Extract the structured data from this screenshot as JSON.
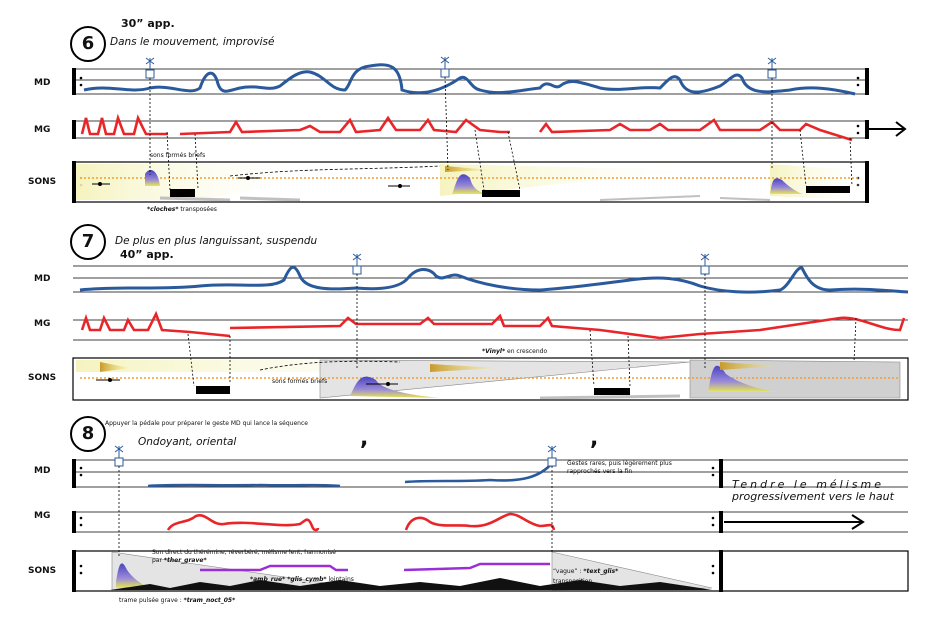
{
  "staff_labels": {
    "md": "MD",
    "mg": "MG",
    "sons": "SONS"
  },
  "sections": [
    {
      "number": "6",
      "tempo": "30” app.",
      "expression": "Dans le mouvement, improvisé",
      "annotations": {
        "sons_formes": "sons formés brïefs",
        "cloches": "*cloches*",
        "cloches_suffix": " transposées"
      }
    },
    {
      "number": "7",
      "tempo": "40” app.",
      "expression": "De plus en plus languissant, suspendu",
      "annotations": {
        "vinyl": "*Vinyl*",
        "vinyl_suffix": " en crescendo",
        "sons_formes": "sons formés brïefs"
      }
    },
    {
      "number": "8",
      "instruction": "Appuyer la pédale pour préparer le geste MD qui lance la séquence",
      "expression": "Ondoyant, oriental",
      "breath_mark": ",",
      "annotations": {
        "gestes": "Gestes rares, puis légèrement plus rapprochés vers la fin",
        "tendre_line1": "Tendre le mélisme",
        "tendre_line2": "progressivement vers le haut",
        "theremin": "Son direct du thérémine, réverbéré, mélisme lent, harmonisé par ",
        "ther_grave": "*ther_grave*",
        "amb_rue": "*amb_rue* *glis_cymb*",
        "amb_rue_suffix": " lointains",
        "vague": "“vague” : ",
        "text_glis": "*text_glis*",
        "transposition": "transposition",
        "trame": "trame pulsée grave : ",
        "tram_noct": "*tram_noct_05*"
      }
    }
  ],
  "colors": {
    "md_curve": "#2a5a9c",
    "mg_curve": "#e8262a",
    "purple_line": "#9b2fd6",
    "yellow_zone": "#f2f0a8",
    "sound_shape": "#5a4fbf",
    "dotted": "#f0a030"
  },
  "icons": [
    "pedal-marker-icon",
    "arrow-right-icon",
    "breath-mark-icon"
  ]
}
